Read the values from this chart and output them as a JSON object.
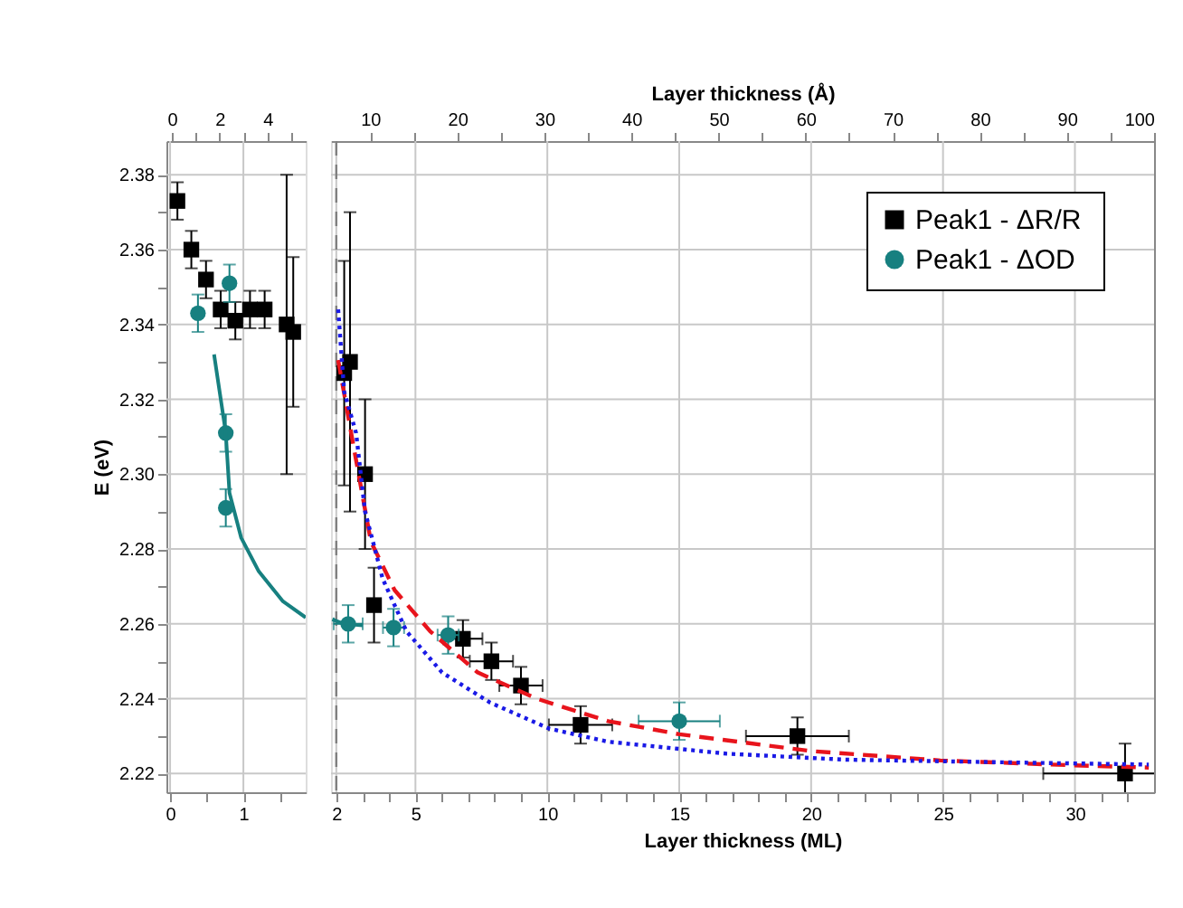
{
  "chart_data": [
    {
      "type": "scatter",
      "ylabel": "E (eV)",
      "xlim": [
        -0.05,
        1.85
      ],
      "xticks": [
        0,
        {
          "value": 0.5,
          "label": null
        },
        1,
        {
          "value": 1.5,
          "label": null
        }
      ],
      "x2lim": [
        -0.23,
        5.6
      ],
      "x2ticks": [
        0,
        {
          "value": 1,
          "label": null
        },
        2,
        {
          "value": 3,
          "label": null
        },
        4,
        {
          "value": 5,
          "label": null
        }
      ],
      "ylim": [
        2.215,
        2.389
      ],
      "yticks": [
        2.22,
        {
          "value": 2.23,
          "label": null
        },
        2.24,
        {
          "value": 2.25,
          "label": null
        },
        2.26,
        {
          "value": 2.27,
          "label": null
        },
        2.28,
        {
          "value": 2.29,
          "label": null
        },
        {
          "value": 2.3,
          "label": "2.30"
        },
        {
          "value": 2.31,
          "label": null
        },
        2.32,
        {
          "value": 2.33,
          "label": null
        },
        2.34,
        {
          "value": 2.35,
          "label": null
        },
        2.36,
        {
          "value": 2.37,
          "label": null
        },
        2.38
      ],
      "grid": true,
      "series": [
        {
          "type": "scatter",
          "marker": "square",
          "color": "#000000",
          "x": [
            0.1,
            0.29,
            0.49,
            0.69,
            0.89,
            1.09,
            1.29,
            1.59,
            1.68
          ],
          "values": [
            2.373,
            2.36,
            2.352,
            2.344,
            2.341,
            2.344,
            2.344,
            2.34,
            2.338
          ],
          "errors": [
            0.005,
            0.005,
            0.005,
            0.005,
            0.005,
            0.005,
            0.005,
            0.04,
            0.02
          ]
        },
        {
          "type": "scatter",
          "marker": "circle",
          "color": "#178080",
          "x": [
            0.38,
            0.81,
            0.76,
            0.76
          ],
          "values": [
            2.343,
            2.351,
            2.311,
            2.291
          ],
          "errors": [
            0.005,
            0.005,
            0.005,
            0.005
          ]
        },
        {
          "type": "line",
          "line_style": "solid",
          "color": "#178080",
          "x": [
            0.6,
            0.76,
            0.81,
            0.97,
            1.21,
            1.54,
            1.85
          ],
          "values": [
            2.332,
            2.311,
            2.295,
            2.283,
            2.274,
            2.266,
            2.2617
          ]
        }
      ]
    },
    {
      "type": "scatter",
      "xlabel": "Layer thickness (ML)",
      "x2label": "Layer thickness (Å)",
      "xlim": [
        1.8,
        33
      ],
      "xticks": [
        2,
        {
          "value": 3,
          "label": null
        },
        {
          "value": 4,
          "label": null
        },
        5,
        {
          "value": 6,
          "label": null
        },
        {
          "value": 7,
          "label": null
        },
        {
          "value": 8,
          "label": null
        },
        {
          "value": 9,
          "label": null
        },
        10,
        {
          "value": 11,
          "label": null
        },
        {
          "value": 12,
          "label": null
        },
        {
          "value": 13,
          "label": null
        },
        {
          "value": 14,
          "label": null
        },
        15,
        {
          "value": 16,
          "label": null
        },
        {
          "value": 17,
          "label": null
        },
        {
          "value": 18,
          "label": null
        },
        {
          "value": 19,
          "label": null
        },
        20,
        {
          "value": 21,
          "label": null
        },
        {
          "value": 22,
          "label": null
        },
        {
          "value": 23,
          "label": null
        },
        {
          "value": 24,
          "label": null
        },
        25,
        {
          "value": 26,
          "label": null
        },
        {
          "value": 27,
          "label": null
        },
        {
          "value": 28,
          "label": null
        },
        {
          "value": 29,
          "label": null
        },
        30,
        {
          "value": 31,
          "label": null
        },
        {
          "value": 32,
          "label": null
        }
      ],
      "x2lim": [
        5.5,
        100
      ],
      "x2ticks": [
        10,
        {
          "value": 15,
          "label": null
        },
        20,
        {
          "value": 25,
          "label": null
        },
        30,
        {
          "value": 35,
          "label": null
        },
        40,
        {
          "value": 45,
          "label": null
        },
        50,
        {
          "value": 55,
          "label": null
        },
        60,
        {
          "value": 65,
          "label": null
        },
        70,
        {
          "value": 75,
          "label": null
        },
        80,
        {
          "value": 85,
          "label": null
        },
        90,
        {
          "value": 95,
          "label": null
        },
        100
      ],
      "ylim": [
        2.215,
        2.389
      ],
      "yticks": [
        {
          "value": 2.22,
          "label": null
        },
        {
          "value": 2.24,
          "label": null
        },
        {
          "value": 2.26,
          "label": null
        },
        {
          "value": 2.28,
          "label": null
        },
        {
          "value": 2.3,
          "label": null
        },
        {
          "value": 2.32,
          "label": null
        },
        {
          "value": 2.34,
          "label": null
        },
        {
          "value": 2.36,
          "label": null
        },
        {
          "value": 2.38,
          "label": null
        }
      ],
      "tick_labels": "x",
      "grid": true,
      "legend": "top right",
      "ref_lines": [
        {
          "axis": "x",
          "value": 2,
          "color": "#808080",
          "line_style": "dashed"
        }
      ],
      "series": [
        {
          "type": "scatter",
          "name": "Peak1  - ΔR/R",
          "marker": "square",
          "color": "#000000",
          "x": [
            2.3,
            2.52,
            3.09,
            3.43,
            6.8,
            7.88,
            9.0,
            11.26,
            19.48,
            31.9
          ],
          "values": [
            2.327,
            2.33,
            2.3,
            2.265,
            2.256,
            2.25,
            2.2435,
            2.233,
            2.23,
            2.22
          ],
          "errors": [
            0.03,
            0.04,
            0.02,
            0.01,
            0.005,
            0.005,
            0.005,
            0.005,
            0.005,
            0.008
          ],
          "xerrors": [
            null,
            null,
            null,
            null,
            0.74,
            0.82,
            0.82,
            1.2,
            1.95,
            3.1
          ]
        },
        {
          "type": "scatter",
          "name": "Peak1  - ΔOD",
          "marker": "circle",
          "color": "#178080",
          "x": [
            2.45,
            4.17,
            6.24,
            15.0
          ],
          "values": [
            2.26,
            2.259,
            2.257,
            2.234
          ],
          "errors": [
            0.005,
            0.005,
            0.005,
            0.005
          ],
          "xerrors": [
            0.55,
            0.4,
            0.4,
            1.54
          ]
        },
        {
          "type": "line",
          "line_style": "solid",
          "color": "#178080",
          "x": [
            1.85,
            2.2,
            2.6,
            3.0
          ],
          "values": [
            2.2612,
            2.2602,
            2.2598,
            2.2596
          ]
        },
        {
          "type": "line",
          "line_style": "dashed",
          "color": "#e8141c",
          "x": [
            2.07,
            2.64,
            3.31,
            4.21,
            5.56,
            7.36,
            9.6,
            12.3,
            15,
            20,
            24.9,
            29.9,
            32.8
          ],
          "values": [
            2.3305,
            2.308,
            2.282,
            2.269,
            2.258,
            2.247,
            2.24,
            2.234,
            2.2305,
            2.226,
            2.2235,
            2.2222,
            2.2216
          ]
        },
        {
          "type": "line",
          "line_style": "dotted",
          "color": "#1a1ae6",
          "x": [
            2.07,
            2.3,
            2.75,
            3.09,
            3.76,
            4.66,
            6.01,
            7.82,
            10.07,
            12.3,
            16.8,
            21.3,
            28.1,
            32.8
          ],
          "values": [
            2.344,
            2.322,
            2.311,
            2.29,
            2.272,
            2.258,
            2.247,
            2.239,
            2.232,
            2.2285,
            2.2253,
            2.2237,
            2.2229,
            2.2224
          ]
        }
      ]
    }
  ]
}
